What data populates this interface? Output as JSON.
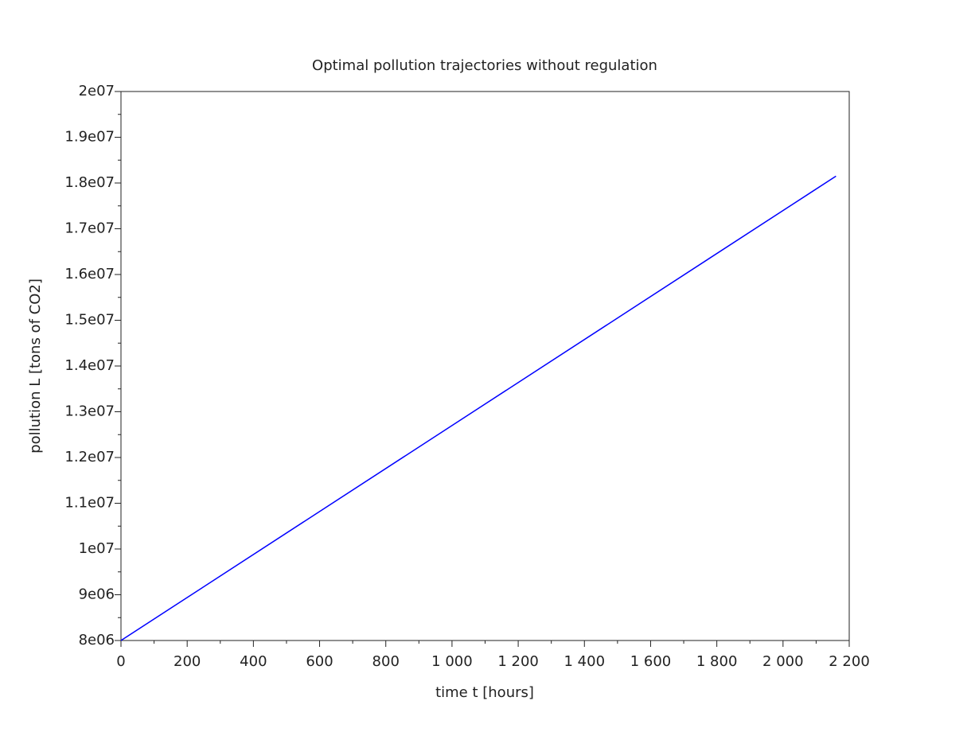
{
  "chart_data": {
    "type": "line",
    "title": "Optimal pollution trajectories without regulation",
    "x_label": "time t [hours]",
    "y_label": "pollution L [tons of CO2]",
    "x": [
      0,
      2160
    ],
    "values": [
      8000000,
      18150000
    ],
    "color": "#0000ff",
    "xlim": [
      0,
      2200
    ],
    "xticks": [
      0,
      200,
      400,
      600,
      800,
      {
        "value": 1000,
        "label": "1 000"
      },
      {
        "value": 1200,
        "label": "1 200"
      },
      {
        "value": 1400,
        "label": "1 400"
      },
      {
        "value": 1600,
        "label": "1 600"
      },
      {
        "value": 1800,
        "label": "1 800"
      },
      {
        "value": 2000,
        "label": "2 000"
      },
      {
        "value": 2200,
        "label": "2 200"
      }
    ],
    "ylim": [
      8000000,
      20000000
    ],
    "yticks": [
      {
        "value": 8000000,
        "label": "8e06"
      },
      {
        "value": 9000000,
        "label": "9e06"
      },
      {
        "value": 10000000,
        "label": "1e07"
      },
      {
        "value": 11000000,
        "label": "1.1e07"
      },
      {
        "value": 12000000,
        "label": "1.2e07"
      },
      {
        "value": 13000000,
        "label": "1.3e07"
      },
      {
        "value": 14000000,
        "label": "1.4e07"
      },
      {
        "value": 15000000,
        "label": "1.5e07"
      },
      {
        "value": 16000000,
        "label": "1.6e07"
      },
      {
        "value": 17000000,
        "label": "1.7e07"
      },
      {
        "value": 18000000,
        "label": "1.8e07"
      },
      {
        "value": 19000000,
        "label": "1.9e07"
      },
      {
        "value": 20000000,
        "label": "2e07"
      }
    ],
    "grid": false
  }
}
